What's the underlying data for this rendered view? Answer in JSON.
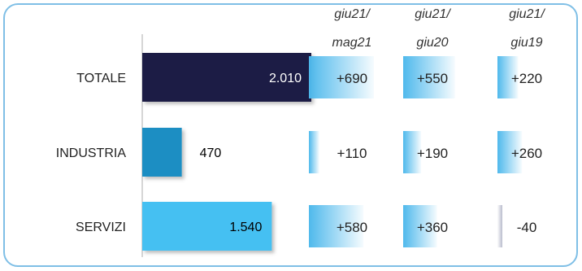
{
  "chart_data": {
    "type": "bar",
    "orientation": "horizontal",
    "categories": [
      "TOTALE",
      "INDUSTRIA",
      "SERVIZI"
    ],
    "values": [
      2010,
      470,
      1540
    ],
    "value_labels": [
      "2.010",
      "470",
      "1.540"
    ],
    "bar_colors": [
      "#1e1b45",
      "#1e8ec3",
      "#45c0f2"
    ],
    "value_label_colors": [
      "#ffffff",
      "#000000",
      "#000000"
    ],
    "xlim": [
      0,
      2010
    ],
    "comparison_columns": [
      {
        "header_line1": "giu21/",
        "header_line2": "mag21",
        "values": [
          690,
          110,
          580
        ],
        "labels": [
          "+690",
          "+110",
          "+580"
        ]
      },
      {
        "header_line1": "giu21/",
        "header_line2": "giu20",
        "values": [
          550,
          190,
          360
        ],
        "labels": [
          "+550",
          "+190",
          "+360"
        ]
      },
      {
        "header_line1": "giu21/",
        "header_line2": "giu19",
        "values": [
          220,
          260,
          -40
        ],
        "labels": [
          "+220",
          "+260",
          "-40"
        ]
      }
    ],
    "positive_color": "#4fb9ec",
    "negative_color": "#b9bccd"
  }
}
